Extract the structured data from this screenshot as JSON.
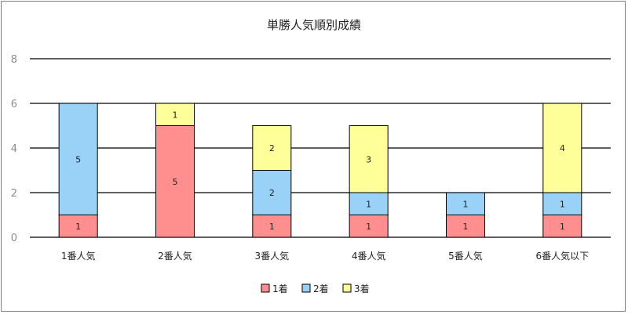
{
  "chart_data": {
    "type": "bar",
    "stacked": true,
    "title": "単勝人気順別成績",
    "xlabel": "",
    "ylabel": "",
    "ylim": [
      0,
      8
    ],
    "yticks": [
      0,
      2,
      4,
      6,
      8
    ],
    "grid": true,
    "legend_position": "bottom",
    "categories": [
      "1番人気",
      "2番人気",
      "3番人気",
      "4番人気",
      "5番人気",
      "6番人気以下"
    ],
    "series": [
      {
        "name": "1着",
        "color": "#ff8f8f",
        "values": [
          1,
          5,
          1,
          1,
          1,
          1
        ]
      },
      {
        "name": "2着",
        "color": "#99d1f7",
        "values": [
          5,
          0,
          2,
          1,
          1,
          1
        ]
      },
      {
        "name": "3着",
        "color": "#ffff99",
        "values": [
          0,
          1,
          2,
          3,
          0,
          4
        ]
      }
    ]
  }
}
